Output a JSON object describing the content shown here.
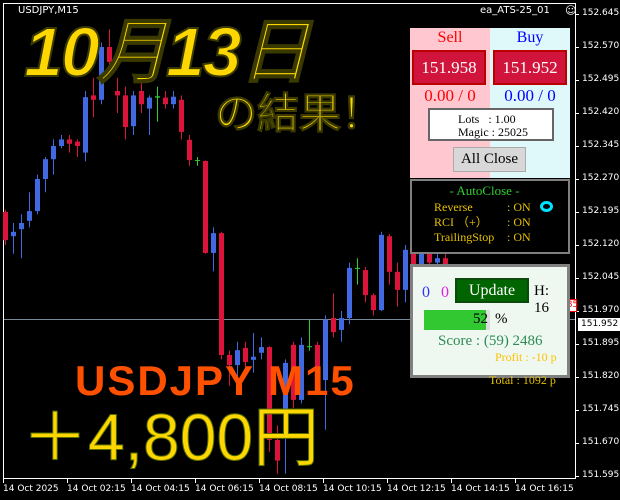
{
  "chart": {
    "symbol_title": "USDJPY,M15",
    "ea_name": "ea_ATS-25_01",
    "ea_icon": "smiley-icon",
    "bull_color": "#4169e1",
    "bear_color": "#dc143c",
    "y_labels": [
      "152.645",
      "152.570",
      "152.495",
      "152.420",
      "152.345",
      "152.270",
      "152.195",
      "152.120",
      "152.045",
      "151.970",
      "151.895",
      "151.820",
      "151.745",
      "151.670",
      "151.595"
    ],
    "y_range": [
      151.595,
      152.645
    ],
    "x_labels": [
      "14 Oct 2025",
      "14 Oct 02:15",
      "14 Oct 04:15",
      "14 Oct 06:15",
      "14 Oct 08:15",
      "14 Oct 10:15",
      "14 Oct 12:15",
      "14 Oct 14:15",
      "14 Oct 16:15"
    ],
    "current_price": "151.952",
    "marker_price": "151.985",
    "candles_ohlc": [
      [
        152.195,
        152.2,
        152.12,
        152.131
      ],
      [
        152.14,
        152.17,
        152.1,
        152.15
      ],
      [
        152.156,
        152.19,
        152.09,
        152.17
      ],
      [
        152.175,
        152.24,
        152.16,
        152.197
      ],
      [
        152.197,
        152.28,
        152.19,
        152.27
      ],
      [
        152.27,
        152.32,
        152.24,
        152.315
      ],
      [
        152.315,
        152.36,
        152.28,
        152.345
      ],
      [
        152.345,
        152.37,
        152.34,
        152.36
      ],
      [
        152.36,
        152.37,
        152.33,
        152.35
      ],
      [
        152.355,
        152.36,
        152.32,
        152.345
      ],
      [
        152.33,
        152.47,
        152.31,
        152.456
      ],
      [
        152.46,
        152.5,
        152.41,
        152.45
      ],
      [
        152.45,
        152.58,
        152.44,
        152.57
      ],
      [
        152.57,
        152.61,
        152.52,
        152.536
      ],
      [
        152.47,
        152.5,
        152.42,
        152.46
      ],
      [
        152.46,
        152.48,
        152.36,
        152.388
      ],
      [
        152.39,
        152.47,
        152.37,
        152.46
      ],
      [
        152.47,
        152.49,
        152.42,
        152.44
      ],
      [
        152.43,
        152.46,
        152.37,
        152.455
      ],
      [
        152.455,
        152.48,
        152.4,
        152.458
      ],
      [
        152.455,
        152.47,
        152.43,
        152.44
      ],
      [
        152.44,
        152.47,
        152.43,
        152.457
      ],
      [
        152.45,
        152.46,
        152.36,
        152.377
      ],
      [
        152.359,
        152.37,
        152.3,
        152.313
      ],
      [
        152.313,
        152.32,
        152.3,
        152.311
      ],
      [
        152.311,
        152.312,
        152.1,
        152.102
      ],
      [
        152.102,
        152.16,
        152.06,
        152.147
      ],
      [
        152.147,
        152.15,
        151.86,
        151.87
      ],
      [
        151.87,
        151.88,
        151.8,
        151.847
      ],
      [
        151.847,
        151.9,
        151.82,
        151.881
      ],
      [
        151.886,
        151.9,
        151.84,
        151.854
      ],
      [
        151.859,
        151.92,
        151.83,
        151.866
      ],
      [
        151.875,
        151.91,
        151.86,
        151.888
      ],
      [
        151.888,
        151.89,
        151.65,
        151.677
      ],
      [
        151.677,
        151.71,
        151.6,
        151.63
      ],
      [
        151.711,
        151.86,
        151.6,
        151.852
      ],
      [
        151.893,
        151.9,
        151.75,
        151.768
      ],
      [
        151.768,
        151.91,
        151.76,
        151.893
      ],
      [
        151.89,
        151.95,
        151.88,
        151.89
      ],
      [
        151.893,
        151.9,
        151.82,
        151.831
      ],
      [
        151.813,
        151.96,
        151.7,
        151.95
      ],
      [
        151.954,
        152.01,
        151.91,
        151.922
      ],
      [
        151.927,
        151.97,
        151.9,
        151.954
      ],
      [
        151.954,
        152.08,
        151.94,
        152.068
      ],
      [
        152.066,
        152.09,
        152.03,
        152.068
      ],
      [
        152.063,
        152.07,
        151.99,
        152.006
      ],
      [
        152.006,
        152.01,
        151.96,
        151.972
      ],
      [
        151.972,
        152.15,
        151.97,
        152.143
      ],
      [
        152.14,
        152.145,
        152.03,
        152.059
      ],
      [
        152.059,
        152.08,
        151.98,
        152.018
      ],
      [
        152.018,
        152.12,
        151.99,
        152.109
      ],
      [
        152.109,
        152.12,
        152.06,
        152.07
      ],
      [
        152.07,
        152.11,
        152.06,
        152.1
      ],
      [
        152.1,
        152.12,
        152.07,
        152.08
      ],
      [
        152.08,
        152.11,
        152.06,
        152.09
      ],
      [
        152.09,
        152.1,
        152.03,
        152.04
      ],
      [
        152.04,
        152.06,
        151.99,
        152.0
      ],
      [
        152.0,
        152.03,
        151.97,
        152.02
      ],
      [
        152.02,
        152.03,
        151.96,
        151.97
      ],
      [
        151.97,
        151.99,
        151.94,
        151.952
      ]
    ]
  },
  "overlay": {
    "date_title": "10月13日",
    "result_text": "の結果！",
    "pair_tf": "USDJPY M15",
    "profit_yen": "＋4,800円"
  },
  "trade_panel": {
    "sell_label": "Sell",
    "buy_label": "Buy",
    "sell_price": "151.958",
    "buy_price": "151.952",
    "sell_pl": "0.00 / 0",
    "buy_pl": "0.00 / 0",
    "lots": "Lots   : 1.00",
    "magic": "Magic : 25025",
    "all_close": "All Close"
  },
  "autoclose": {
    "title": "- AutoClose -",
    "rows": [
      {
        "label": "Reverse",
        "value": ": ON"
      },
      {
        "label": "RCI （+）",
        "value": ": ON"
      },
      {
        "label": "TrailingStop",
        "value": ": ON"
      }
    ],
    "indicator_color": "#00e5ff"
  },
  "status_panel": {
    "count_blue": "0",
    "count_magenta": "0",
    "update": "Update",
    "hour": "H: 16",
    "progress_percent": 52,
    "progress_value": "52",
    "percent_sign": "%",
    "score": "Score : (59) 2486",
    "profit": "Profit : -10 p",
    "total": "Total : 1092 p"
  }
}
